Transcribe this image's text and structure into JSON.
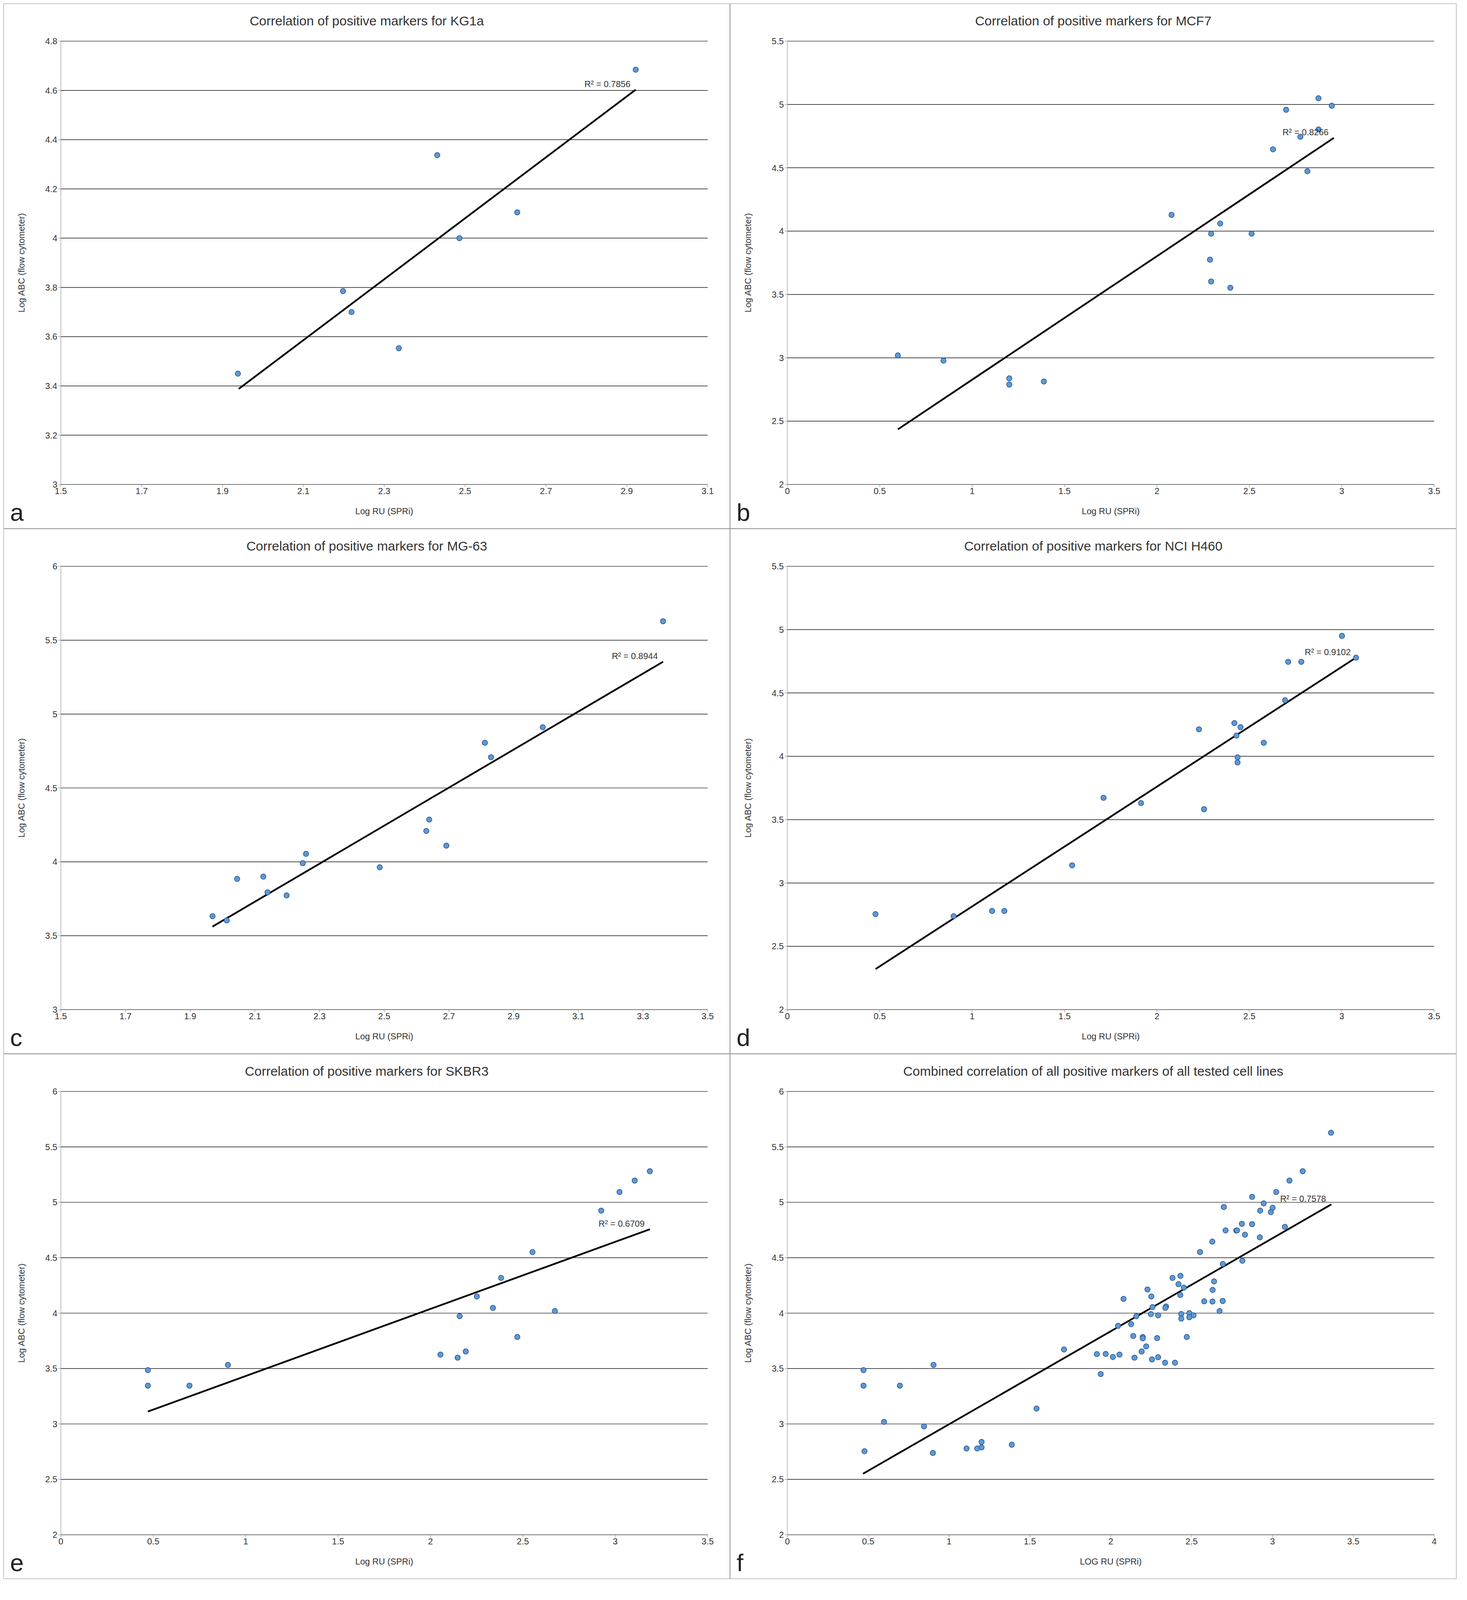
{
  "chart_data": [
    {
      "type": "scatter",
      "title": "Correlation of positive markers for KG1a",
      "panel_label": "a",
      "x_label": "Log RU (SPRi)",
      "y_label": "Log ABC (flow cytometer)",
      "color": "#5b9bd5",
      "grid": true,
      "x": [
        1.938,
        2.198,
        2.219,
        2.336,
        2.431,
        2.486,
        2.629,
        2.922
      ],
      "y": [
        3.45,
        3.785,
        3.7,
        3.553,
        4.337,
        4.0,
        4.105,
        4.684
      ],
      "trend_x": [
        1.94,
        2.922
      ],
      "trend_y": [
        3.388,
        4.603
      ],
      "annotation": "R² = 0.7856",
      "xlim": [
        1.5,
        3.1
      ],
      "xticks": [
        1.5,
        1.7,
        1.9,
        2.1,
        2.3,
        2.5,
        2.7,
        2.9,
        3.1
      ],
      "ylim": [
        3,
        4.8
      ],
      "yticks": [
        3,
        3.2,
        3.4,
        3.6,
        3.8,
        4,
        4.2,
        4.4,
        4.6,
        4.8
      ]
    },
    {
      "type": "scatter",
      "title": "Correlation of positive markers for MCF7",
      "panel_label": "b",
      "x_label": "Log RU (SPRi)",
      "y_label": "Log ABC (flow cytometer)",
      "color": "#5b9bd5",
      "grid": true,
      "x": [
        0.598,
        0.845,
        1.201,
        1.201,
        1.388,
        2.079,
        2.293,
        2.287,
        2.293,
        2.342,
        2.397,
        2.512,
        2.628,
        2.699,
        2.776,
        2.814,
        2.874,
        2.874,
        2.946
      ],
      "y": [
        3.019,
        2.978,
        2.838,
        2.789,
        2.813,
        4.128,
        3.98,
        3.775,
        3.602,
        4.06,
        3.553,
        3.98,
        4.646,
        4.958,
        4.745,
        4.473,
        5.049,
        4.803,
        4.99
      ],
      "trend_x": [
        0.598,
        2.957
      ],
      "trend_y": [
        2.435,
        4.736
      ],
      "annotation": "R² = 0.8266",
      "xlim": [
        0,
        3.5
      ],
      "xticks": [
        0,
        0.5,
        1,
        1.5,
        2,
        2.5,
        3,
        3.5
      ],
      "ylim": [
        2,
        5.5
      ],
      "yticks": [
        2,
        2.5,
        3,
        3.5,
        4,
        4.5,
        5,
        5.5
      ]
    },
    {
      "type": "scatter",
      "title": "Correlation of positive markers for MG-63",
      "panel_label": "c",
      "x_label": "Log RU (SPRi)",
      "y_label": "Log ABC (flow cytometer)",
      "color": "#5b9bd5",
      "grid": true,
      "x": [
        1.969,
        2.013,
        2.045,
        2.126,
        2.139,
        2.198,
        2.248,
        2.258,
        2.486,
        2.63,
        2.639,
        2.692,
        2.811,
        2.83,
        2.99,
        3.362
      ],
      "y": [
        3.632,
        3.604,
        3.885,
        3.9,
        3.794,
        3.773,
        3.991,
        4.054,
        3.963,
        4.209,
        4.286,
        4.11,
        4.806,
        4.708,
        4.911,
        5.628
      ],
      "trend_x": [
        1.969,
        3.362
      ],
      "trend_y": [
        3.562,
        5.354
      ],
      "annotation": "R² = 0.8944",
      "xlim": [
        1.5,
        3.5
      ],
      "xticks": [
        1.5,
        1.7,
        1.9,
        2.1,
        2.3,
        2.5,
        2.7,
        2.9,
        3.1,
        3.3,
        3.5
      ],
      "ylim": [
        3,
        6
      ],
      "yticks": [
        3,
        3.5,
        4,
        4.5,
        5,
        5.5,
        6
      ]
    },
    {
      "type": "scatter",
      "title": "Correlation of positive markers for NCI H460",
      "panel_label": "d",
      "x_label": "Log RU (SPRi)",
      "y_label": "Log ABC (flow cytometer)",
      "color": "#5b9bd5",
      "grid": true,
      "x": [
        0.477,
        0.9,
        1.108,
        1.174,
        1.541,
        1.711,
        1.914,
        2.227,
        2.255,
        2.419,
        2.43,
        2.436,
        2.436,
        2.452,
        2.578,
        2.693,
        2.71,
        2.781,
        3.001,
        3.077
      ],
      "y": [
        2.754,
        2.738,
        2.779,
        2.779,
        3.139,
        3.672,
        3.631,
        4.213,
        3.582,
        4.262,
        4.164,
        3.992,
        3.951,
        4.23,
        4.107,
        4.443,
        4.746,
        4.746,
        4.951,
        4.779
      ],
      "trend_x": [
        0.477,
        3.077
      ],
      "trend_y": [
        2.32,
        4.779
      ],
      "annotation": "R² = 0.9102",
      "xlim": [
        0,
        3.5
      ],
      "xticks": [
        0,
        0.5,
        1,
        1.5,
        2,
        2.5,
        3,
        3.5
      ],
      "ylim": [
        2,
        5.5
      ],
      "yticks": [
        2,
        2.5,
        3,
        3.5,
        4,
        4.5,
        5,
        5.5
      ]
    },
    {
      "type": "scatter",
      "title": "Correlation of positive markers for SKBR3",
      "panel_label": "e",
      "x_label": "Log RU (SPRi)",
      "y_label": "Log ABC (flow cytometer)",
      "color": "#5b9bd5",
      "grid": true,
      "x": [
        0.471,
        0.471,
        0.696,
        0.904,
        2.054,
        2.147,
        2.158,
        2.191,
        2.251,
        2.338,
        2.382,
        2.47,
        2.552,
        2.673,
        2.924,
        3.023,
        3.105,
        3.187
      ],
      "y": [
        3.486,
        3.346,
        3.346,
        3.533,
        3.626,
        3.598,
        3.972,
        3.654,
        4.15,
        4.047,
        4.318,
        3.785,
        4.551,
        4.019,
        4.925,
        5.093,
        5.196,
        5.28
      ],
      "trend_x": [
        0.471,
        3.187
      ],
      "trend_y": [
        3.112,
        4.757
      ],
      "annotation": "R² = 0.6709",
      "xlim": [
        0,
        3.5
      ],
      "xticks": [
        0,
        0.5,
        1,
        1.5,
        2,
        2.5,
        3,
        3.5
      ],
      "ylim": [
        2,
        6
      ],
      "yticks": [
        2,
        2.5,
        3,
        3.5,
        4,
        4.5,
        5,
        5.5,
        6
      ]
    },
    {
      "type": "scatter",
      "title": "Combined correlation of all positive markers of all tested cell lines",
      "panel_label": "f",
      "x_label": "LOG RU (SPRi)",
      "y_label": "Log ABC (flow cytometer)",
      "color": "#5b9bd5",
      "grid": true,
      "x": [
        1.938,
        2.198,
        2.219,
        2.336,
        2.431,
        2.486,
        2.629,
        2.922,
        0.598,
        0.845,
        1.201,
        1.201,
        1.388,
        2.079,
        2.293,
        2.287,
        2.293,
        2.342,
        2.397,
        2.512,
        2.628,
        2.699,
        2.776,
        2.814,
        2.874,
        2.874,
        2.946,
        1.969,
        2.013,
        2.045,
        2.126,
        2.139,
        2.198,
        2.248,
        2.258,
        2.486,
        2.63,
        2.639,
        2.692,
        2.811,
        2.83,
        2.99,
        3.362,
        0.477,
        0.9,
        1.108,
        1.174,
        1.541,
        1.711,
        1.914,
        2.227,
        2.255,
        2.419,
        2.43,
        2.436,
        2.436,
        2.452,
        2.578,
        2.693,
        2.71,
        2.781,
        3.001,
        3.077,
        0.471,
        0.471,
        0.696,
        0.904,
        2.054,
        2.147,
        2.158,
        2.191,
        2.251,
        2.338,
        2.382,
        2.47,
        2.552,
        2.673,
        2.924,
        3.023,
        3.105,
        3.187
      ],
      "y": [
        3.45,
        3.785,
        3.7,
        3.553,
        4.337,
        4.0,
        4.105,
        4.684,
        3.019,
        2.978,
        2.838,
        2.789,
        2.813,
        4.128,
        3.98,
        3.775,
        3.602,
        4.06,
        3.553,
        3.98,
        4.646,
        4.958,
        4.745,
        4.473,
        5.049,
        4.803,
        4.99,
        3.632,
        3.604,
        3.885,
        3.9,
        3.794,
        3.773,
        3.991,
        4.054,
        3.963,
        4.209,
        4.286,
        4.11,
        4.806,
        4.708,
        4.911,
        5.628,
        2.754,
        2.738,
        2.779,
        2.779,
        3.139,
        3.672,
        3.631,
        4.213,
        3.582,
        4.262,
        4.164,
        3.992,
        3.951,
        4.23,
        4.107,
        4.443,
        4.746,
        4.746,
        4.951,
        4.779,
        3.486,
        3.346,
        3.346,
        3.533,
        3.626,
        3.598,
        3.972,
        3.654,
        4.15,
        4.047,
        4.318,
        3.785,
        4.551,
        4.019,
        4.925,
        5.093,
        5.196,
        5.28
      ],
      "trend_x": [
        0.468,
        3.364
      ],
      "trend_y": [
        2.551,
        4.981
      ],
      "annotation": "R² = 0.7578",
      "xlim": [
        0,
        4
      ],
      "xticks": [
        0,
        0.5,
        1,
        1.5,
        2,
        2.5,
        3,
        3.5,
        4
      ],
      "ylim": [
        2,
        6
      ],
      "yticks": [
        2,
        2.5,
        3,
        3.5,
        4,
        4.5,
        5,
        5.5,
        6
      ]
    }
  ]
}
